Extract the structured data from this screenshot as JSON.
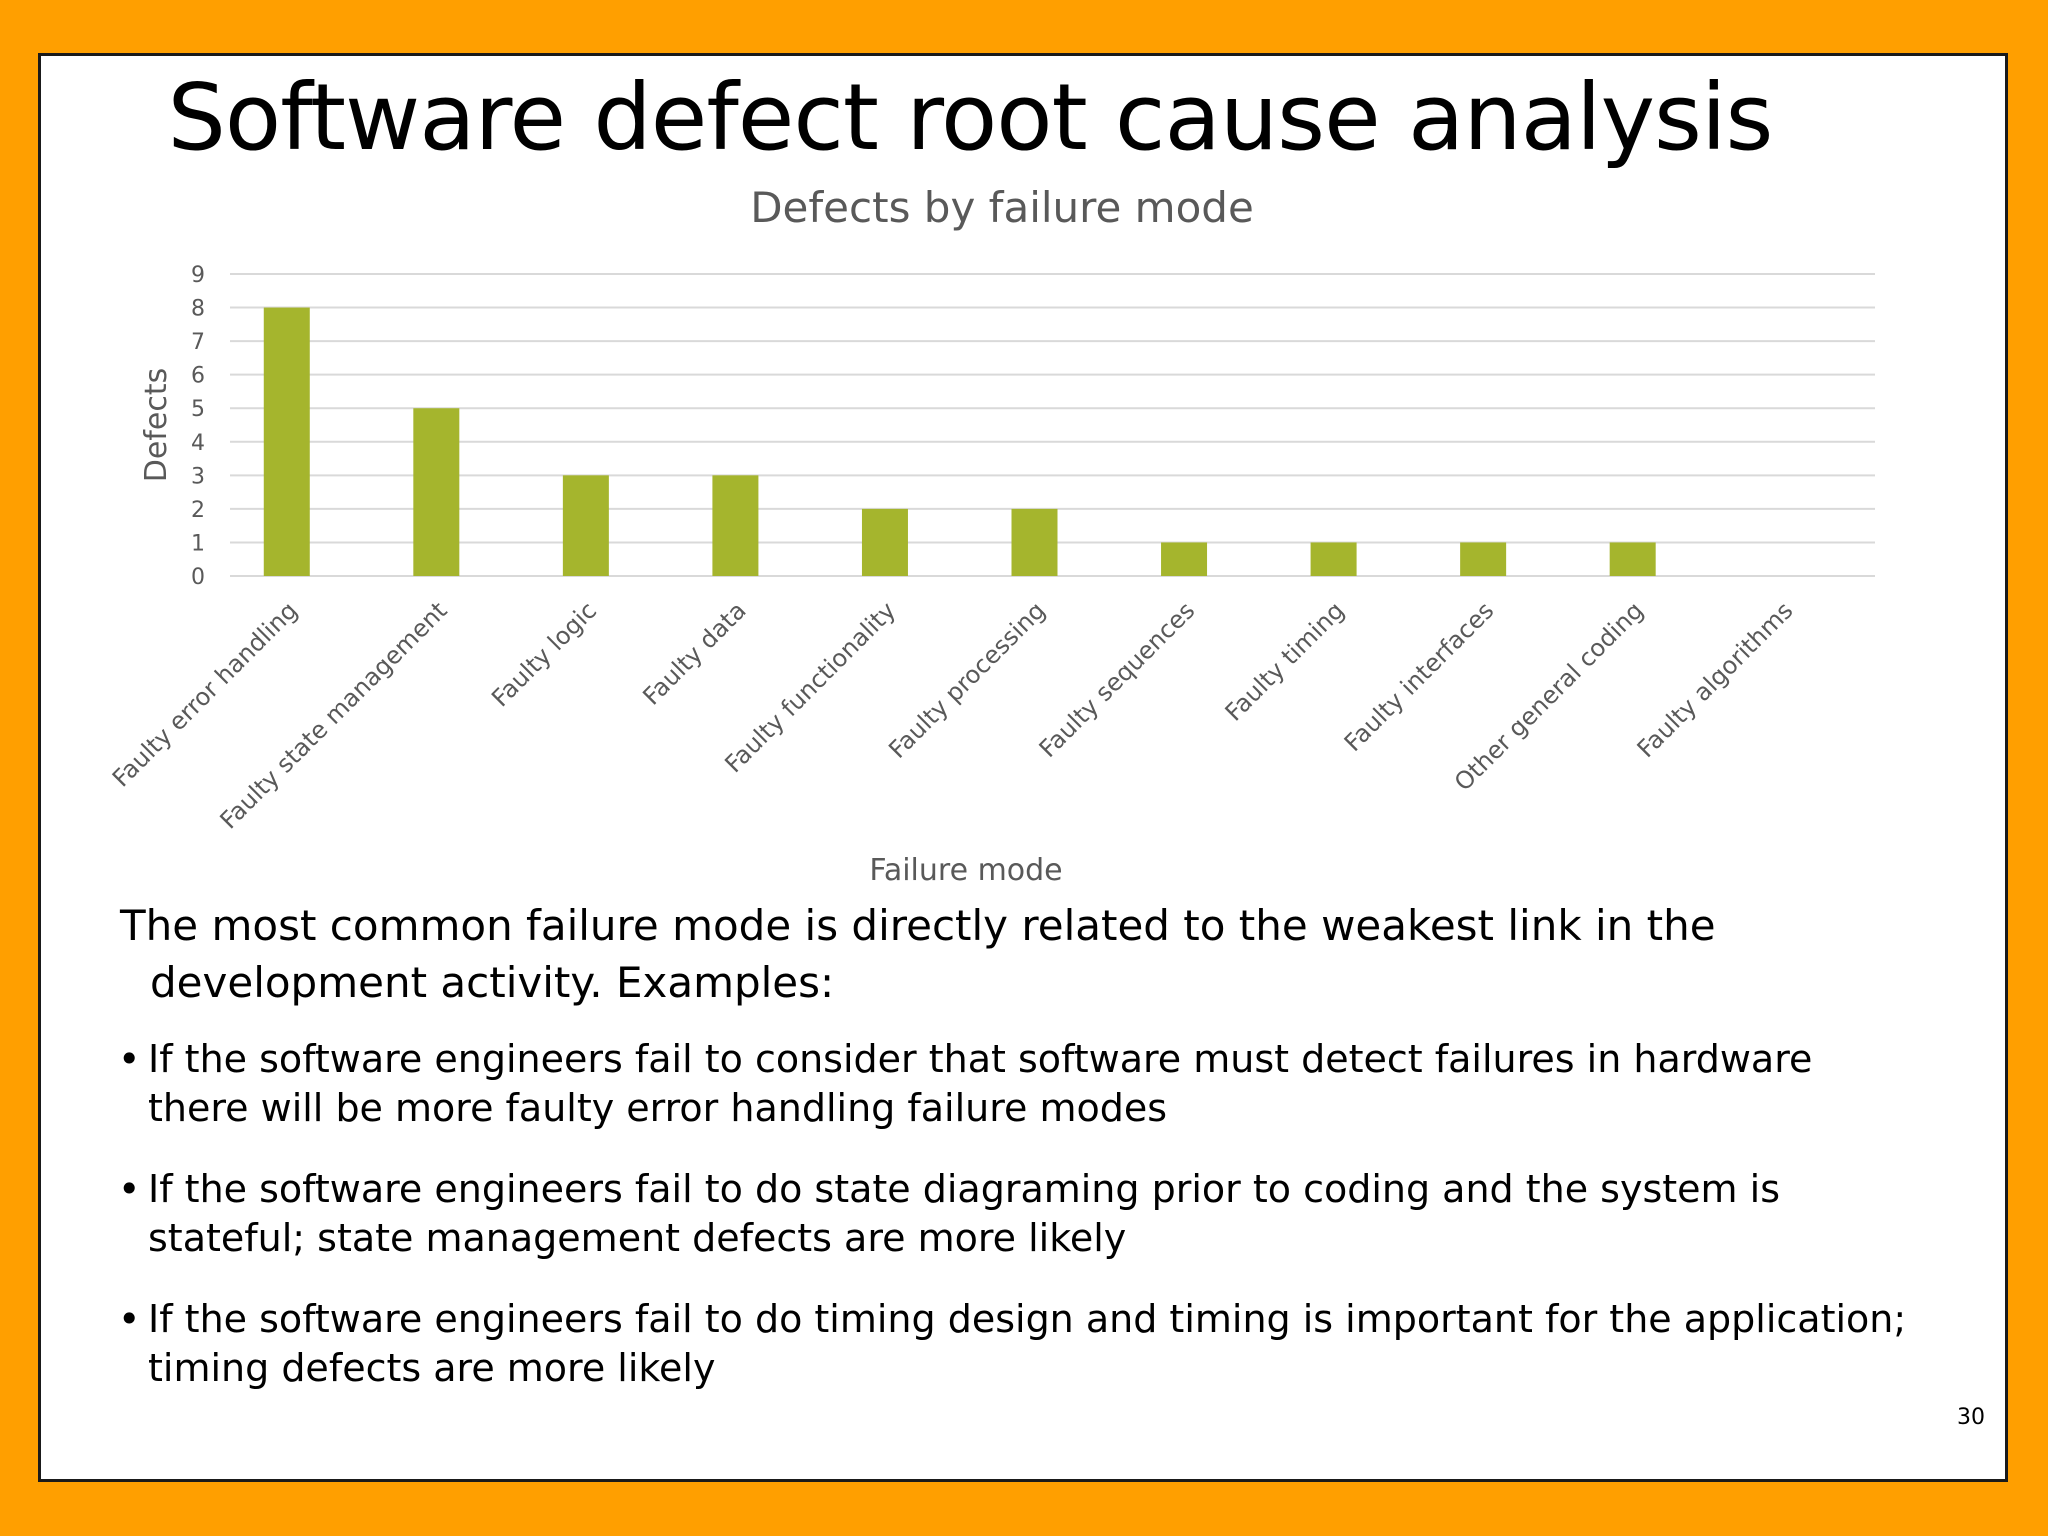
{
  "slide": {
    "title": "Software defect root cause analysis",
    "page_number": "30",
    "intro_text": "The most common failure mode is directly related to the weakest link in the development activity. Examples:",
    "bullets": [
      "If the software engineers fail to consider that software must detect failures in hardware there will be more faulty error handling failure modes",
      "If the software engineers fail to do state diagraming prior to coding and the system is stateful; state management defects are more likely",
      "If the software engineers fail to do timing design and timing is important for the application; timing defects are more likely"
    ],
    "bullet_glyph": "•"
  },
  "colors": {
    "background": "#FF9F00",
    "bar": "#A5B52D",
    "gridline": "#D9D9D9",
    "text_gray": "#595959"
  },
  "chart_data": {
    "type": "bar",
    "title": "Defects by failure mode",
    "xlabel": "Failure mode",
    "ylabel": "Defects",
    "categories": [
      "Faulty error handling",
      "Faulty state management",
      "Faulty logic",
      "Faulty data",
      "Faulty functionality",
      "Faulty processing",
      "Faulty sequences",
      "Faulty timing",
      "Faulty interfaces",
      "Other general coding",
      "Faulty algorithms"
    ],
    "values": [
      8,
      5,
      3,
      3,
      2,
      2,
      1,
      1,
      1,
      1,
      0
    ],
    "ylim": [
      0,
      9
    ],
    "yticks": [
      "0",
      "1",
      "2",
      "3",
      "4",
      "5",
      "6",
      "7",
      "8",
      "9"
    ],
    "grid": true,
    "legend": "none"
  }
}
